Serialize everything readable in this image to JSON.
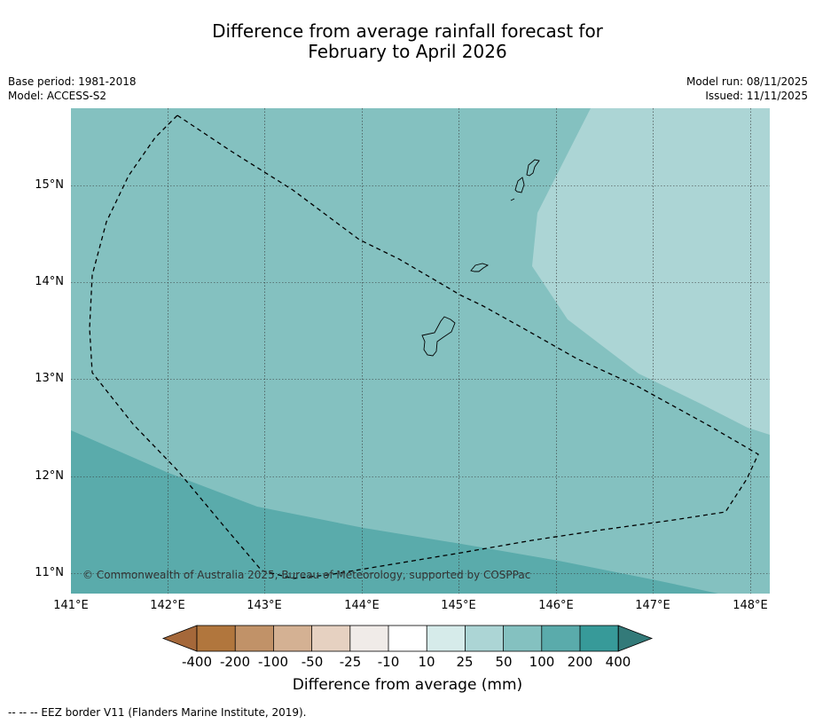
{
  "title": {
    "line1": "Difference from average rainfall forecast for",
    "line2": "February to April 2026"
  },
  "meta_left": {
    "base_period": "Base period: 1981-2018",
    "model": "Model: ACCESS-S2"
  },
  "meta_right": {
    "model_run": "Model run: 08/11/2025",
    "issued": "Issued: 11/11/2025"
  },
  "map": {
    "copyright": "© Commonwealth of Australia 2025, Bureau of Meteorology, supported by COSPPac",
    "lat_labels": [
      "15°N",
      "14°N",
      "13°N",
      "12°N",
      "11°N"
    ],
    "lon_labels": [
      "141°E",
      "142°E",
      "143°E",
      "144°E",
      "145°E",
      "146°E",
      "147°E",
      "148°E"
    ],
    "zones": [
      {
        "name": "100 to 200 mm",
        "color": "#5aabab"
      },
      {
        "name": "50 to 100 mm",
        "color": "#84c1c0"
      },
      {
        "name": "25 to 50 mm",
        "color": "#acd5d5"
      }
    ]
  },
  "colorbar": {
    "ticks": [
      "-400",
      "-200",
      "-100",
      "-50",
      "-25",
      "-10",
      "10",
      "25",
      "50",
      "100",
      "200",
      "400"
    ],
    "colors": [
      "#a5683a",
      "#b1763d",
      "#c19268",
      "#d4b193",
      "#e6d1c1",
      "#f0ebe8",
      "#ffffff",
      "#d6ebea",
      "#acd5d5",
      "#84c1c0",
      "#5aabab",
      "#379a99",
      "#337a79"
    ],
    "label": "Difference from average (mm)"
  },
  "footnote": "--  --  -- EEZ border V11 (Flanders Marine Institute, 2019)."
}
